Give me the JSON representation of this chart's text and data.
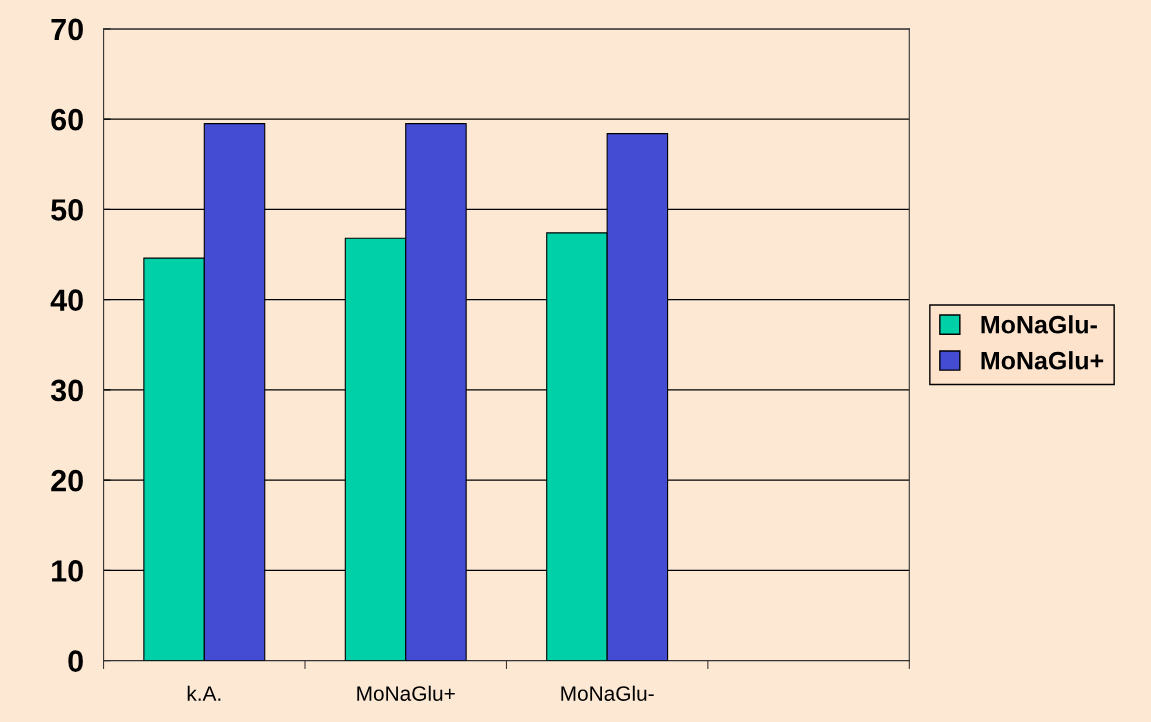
{
  "chart_data": {
    "type": "bar",
    "categories": [
      "k.A.",
      "MoNaGlu+",
      "MoNaGlu-",
      null
    ],
    "series": [
      {
        "name": "MoNaGlu-",
        "color": "#00d0a8",
        "values": [
          44.6,
          46.8,
          47.4,
          null
        ]
      },
      {
        "name": "MoNaGlu+",
        "color": "#444cd4",
        "values": [
          59.5,
          59.5,
          58.4,
          null
        ]
      }
    ],
    "ylim": [
      0,
      70
    ],
    "yticks": [
      0,
      10,
      20,
      30,
      40,
      50,
      60,
      70
    ],
    "grid": "y",
    "legend": "right"
  }
}
